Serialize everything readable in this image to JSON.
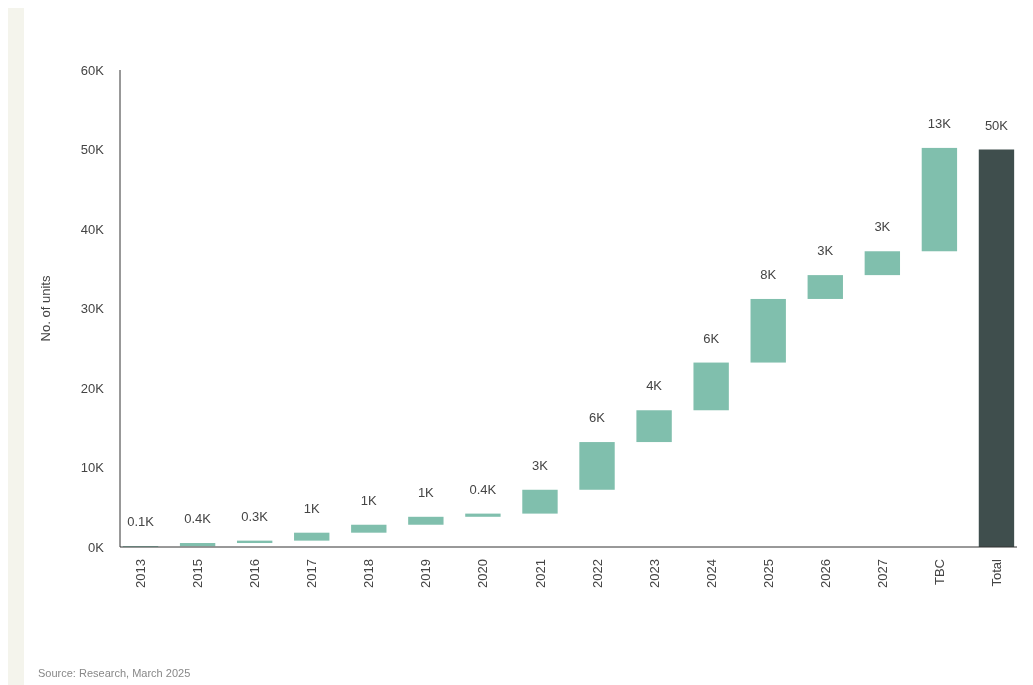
{
  "chart_data": {
    "type": "bar",
    "ylabel": "No. of units",
    "categories": [
      "2013",
      "2015",
      "2016",
      "2017",
      "2018",
      "2019",
      "2020",
      "2021",
      "2022",
      "2023",
      "2024",
      "2025",
      "2026",
      "2027",
      "TBC",
      "Total"
    ],
    "values": [
      0.1,
      0.4,
      0.3,
      1,
      1,
      1,
      0.4,
      3,
      6,
      4,
      6,
      8,
      3,
      3,
      13,
      50
    ],
    "base": [
      0,
      0.1,
      0.5,
      0.8,
      1.8,
      2.8,
      3.8,
      4.2,
      7.2,
      13.2,
      17.2,
      23.2,
      31.2,
      34.2,
      37.2,
      0
    ],
    "value_labels": [
      "0.1K",
      "0.4K",
      "0.3K",
      "1K",
      "1K",
      "1K",
      "0.4K",
      "3K",
      "6K",
      "4K",
      "6K",
      "8K",
      "3K",
      "3K",
      "13K",
      "50K"
    ],
    "colors": [
      "#80bfad",
      "#80bfad",
      "#80bfad",
      "#80bfad",
      "#80bfad",
      "#80bfad",
      "#80bfad",
      "#80bfad",
      "#80bfad",
      "#80bfad",
      "#80bfad",
      "#80bfad",
      "#80bfad",
      "#80bfad",
      "#80bfad",
      "#3f4e4d"
    ],
    "ylim": [
      0,
      60
    ],
    "yticks": [
      {
        "value": 0,
        "label": "0K"
      },
      {
        "value": 10,
        "label": "10K"
      },
      {
        "value": 20,
        "label": "20K"
      },
      {
        "value": 30,
        "label": "30K"
      },
      {
        "value": 40,
        "label": "40K"
      },
      {
        "value": 50,
        "label": "50K"
      },
      {
        "value": 60,
        "label": "60K"
      }
    ],
    "grid": false,
    "annotations": [
      "Source: Research, March 2025"
    ]
  }
}
